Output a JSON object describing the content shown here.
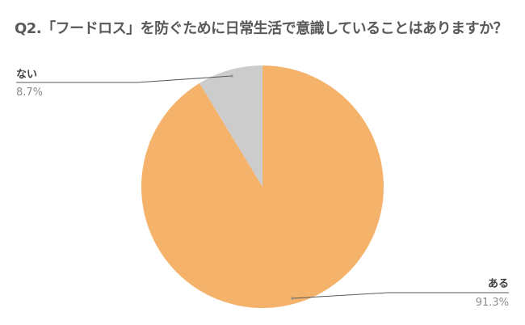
{
  "chart_data": {
    "type": "pie",
    "title": "Q2.「フードロス」を防ぐために日常生活で意識していることはありますか？",
    "slices": [
      {
        "label": "ある",
        "value": 91.3,
        "value_label": "91.3%",
        "color": "#F5B26B"
      },
      {
        "label": "ない",
        "value": 8.7,
        "value_label": "8.7%",
        "color": "#CCCCCC"
      }
    ],
    "legend": "none",
    "data_labels": "outside with leader lines"
  }
}
